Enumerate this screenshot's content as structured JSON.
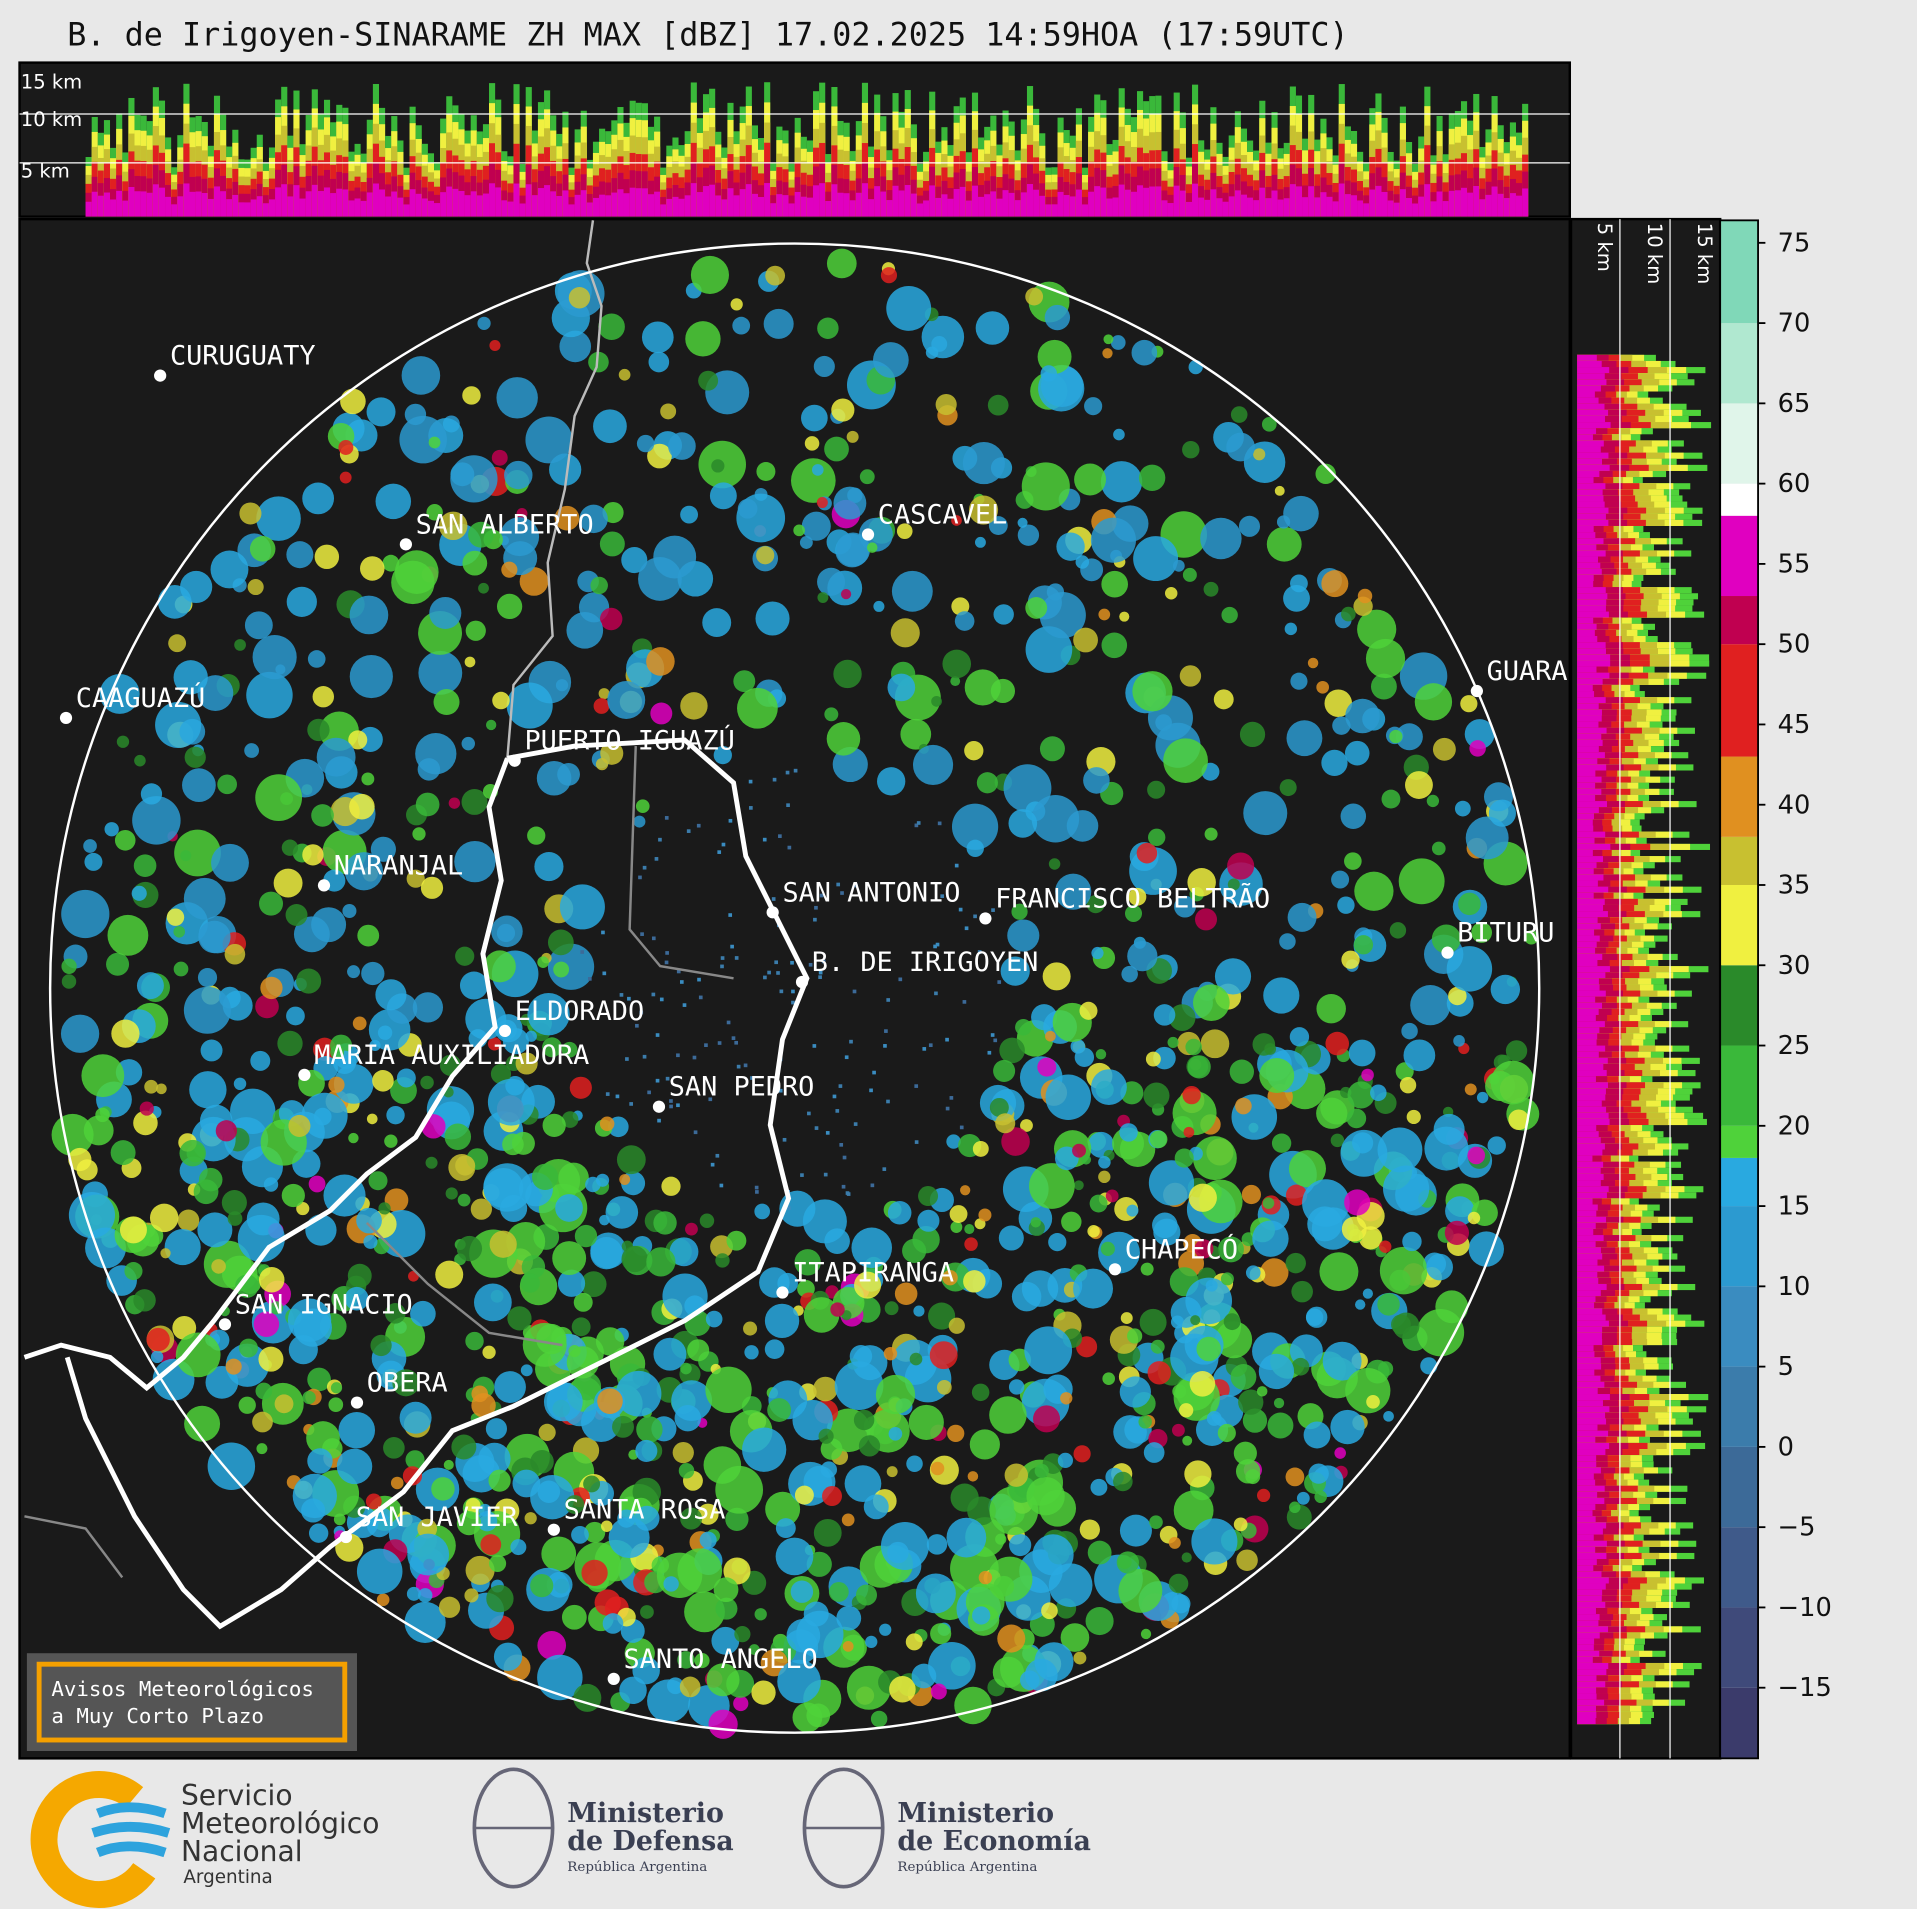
{
  "title": "B. de Irigoyen-SINARAME ZH MAX [dBZ] 17.02.2025 14:59HOA (17:59UTC)",
  "top_panel": {
    "height_labels": [
      "15 km",
      "10 km",
      "5 km"
    ]
  },
  "side_panel": {
    "height_labels": [
      "5 km",
      "10 km",
      "15 km"
    ]
  },
  "cities": [
    "CURUGUATY",
    "SAN ALBERTO",
    "CASCAVEL",
    "CAAGUAZÚ",
    "GUARA",
    "PUERTO IGUAZÚ",
    "NARANJAL",
    "SAN ANTONIO",
    "FRANCISCO BELTRÃO",
    "BITURU",
    "B. DE IRIGOYEN",
    "ELDORADO",
    "MARIA AUXILIADORA",
    "SAN PEDRO",
    "CHAPECÓ",
    "ITAPIRANGA",
    "SAN IGNACIO",
    "OBERA",
    "SAN JAVIER",
    "SANTA ROSA",
    "SANTO ANGELO"
  ],
  "colorbar": {
    "ylim": [
      -19.4,
      76.4
    ],
    "yticks": [
      {
        "value": -15,
        "label": "−15"
      },
      {
        "value": -10,
        "label": "−10"
      },
      {
        "value": -5,
        "label": "−5"
      },
      0,
      5,
      10,
      15,
      20,
      25,
      30,
      35,
      40,
      45,
      50,
      55,
      60,
      65,
      70,
      75
    ],
    "bounds": [
      -19.4,
      -15,
      -10,
      -5,
      0,
      5,
      10,
      15,
      18,
      20,
      25,
      30,
      35,
      38,
      43,
      50,
      53,
      58,
      60,
      65,
      70,
      76.4
    ],
    "colors": [
      "#3b3b6b",
      "#3f4a7a",
      "#3f5a8a",
      "#3c6a98",
      "#3b7cab",
      "#3a8cc0",
      "#2c9ad0",
      "#29a9e0",
      "#4fd23a",
      "#3ab83a",
      "#2a8a2a",
      "#f0f040",
      "#c8c030",
      "#e09020",
      "#e02020",
      "#c00050",
      "#e000c0",
      "#ffffff",
      "#e0f5ea",
      "#b0e8d0",
      "#80d8b8"
    ]
  },
  "notice": [
    "Avisos Meteorológicos",
    "a Muy Corto Plazo"
  ],
  "logos": {
    "smn": [
      "Servicio",
      "Meteorológico",
      "Nacional",
      "Argentina"
    ],
    "defensa": [
      "Ministerio",
      "de Defensa",
      "República Argentina"
    ],
    "economia": [
      "Ministerio",
      "de Economía",
      "República Argentina"
    ]
  }
}
